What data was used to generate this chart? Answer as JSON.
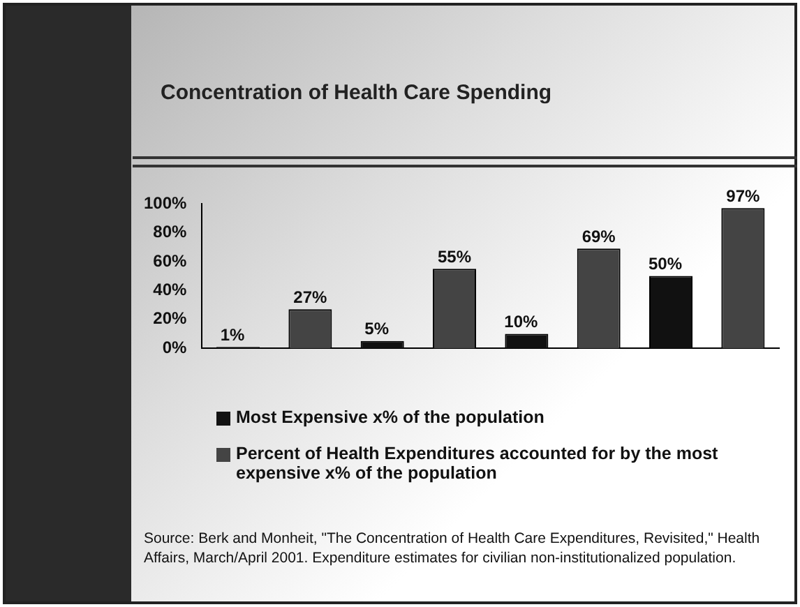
{
  "chart_data": {
    "type": "bar",
    "title": "Concentration of Health Care Spending",
    "categories": [
      null,
      null,
      null,
      null
    ],
    "series": [
      {
        "name": "Most Expensive x% of the population",
        "color": "#111111",
        "values": [
          1,
          5,
          10,
          50
        ],
        "value_labels": [
          "1%",
          "5%",
          "10%",
          "50%"
        ]
      },
      {
        "name": "Percent of Health Expenditures accounted for by the most expensive x% of the population",
        "color": "#444444",
        "values": [
          27,
          55,
          69,
          97
        ],
        "value_labels": [
          "27%",
          "55%",
          "69%",
          "97%"
        ]
      }
    ],
    "ylim": [
      0,
      100
    ],
    "yticks": [
      {
        "value": 0,
        "label": "0%"
      },
      {
        "value": 20,
        "label": "20%"
      },
      {
        "value": 40,
        "label": "40%"
      },
      {
        "value": 60,
        "label": "60%"
      },
      {
        "value": 80,
        "label": "80%"
      },
      {
        "value": 100,
        "label": "100%"
      }
    ],
    "grid": false,
    "legend": "bottom",
    "annotations": [
      "Source: Berk and Monheit, \"The  Concentration of Health Care Expenditures, Revisited,\" Health Affairs, March/April 2001.  Expenditure estimates for civilian non-institutionalized population."
    ]
  }
}
